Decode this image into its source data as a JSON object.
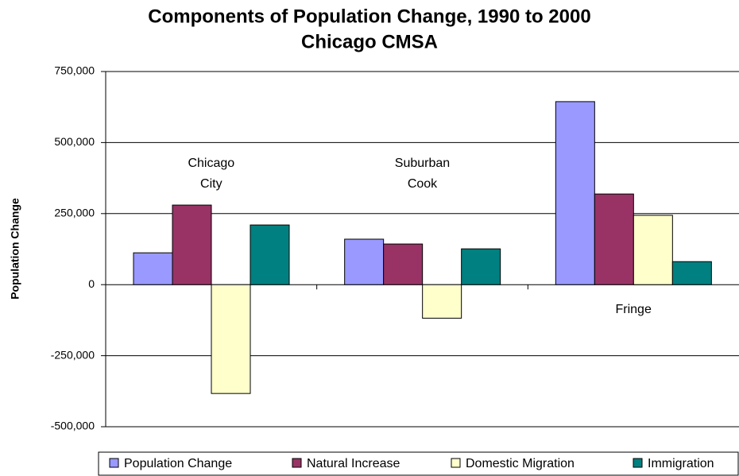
{
  "chart_data": {
    "type": "bar",
    "title": "Components of Population Change, 1990 to 2000",
    "subtitle": "Chicago CMSA",
    "y_label": "Population Change",
    "categories": [
      "Chicago City",
      "Suburban Cook",
      "Fringe"
    ],
    "series": [
      {
        "name": "Population Change",
        "color": "#9999ff",
        "values": [
          112000,
          160000,
          644000
        ]
      },
      {
        "name": "Natural Increase",
        "color": "#993366",
        "values": [
          280000,
          143000,
          319000
        ]
      },
      {
        "name": "Domestic Migration",
        "color": "#ffffcc",
        "values": [
          -383000,
          -118000,
          244000
        ]
      },
      {
        "name": "Immigration",
        "color": "#008080",
        "values": [
          210000,
          126000,
          81000
        ]
      }
    ],
    "ylim": [
      -500000,
      750000
    ],
    "yticks": [
      {
        "value": -500000,
        "label": "-500,000"
      },
      {
        "value": -250000,
        "label": "-250,000"
      },
      0,
      {
        "value": 250000,
        "label": "250,000"
      },
      {
        "value": 500000,
        "label": "500,000"
      },
      {
        "value": 750000,
        "label": "750,000"
      }
    ],
    "grid": true,
    "legend": "bottom"
  }
}
